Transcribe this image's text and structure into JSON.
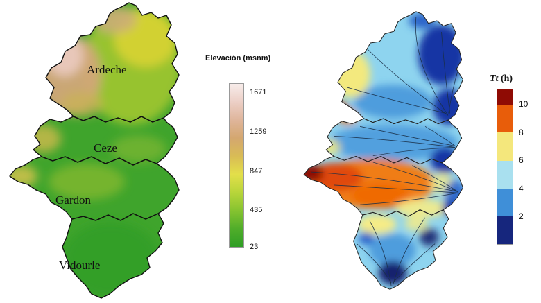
{
  "map": {
    "labels": {
      "ardeche": "Ardeche",
      "ceze": "Ceze",
      "gardon": "Gardon",
      "vidourle": "Vidourle"
    }
  },
  "left_legend": {
    "title": "Elevación (msnm)",
    "ticks": [
      "1671",
      "1259",
      "847",
      "435",
      "23"
    ],
    "gradient": [
      "#f7ecea",
      "#eccfc6",
      "#dfb59b",
      "#d4a76f",
      "#d9bc55",
      "#e3df4a",
      "#b8d53a",
      "#86c330",
      "#50ad2a",
      "#2f9e25"
    ]
  },
  "right_legend": {
    "title_italic": "Tt",
    "title_rest": " (h)",
    "ticks": [
      "10",
      "8",
      "6",
      "4",
      "2"
    ],
    "segments": [
      {
        "c": "#8f0b04",
        "h": 10
      },
      {
        "c": "#e85d0a",
        "h": 18
      },
      {
        "c": "#f4e77c",
        "h": 18
      },
      {
        "c": "#a9e0ef",
        "h": 18
      },
      {
        "c": "#3f8fd8",
        "h": 18
      },
      {
        "c": "#16267d",
        "h": 18
      }
    ]
  }
}
